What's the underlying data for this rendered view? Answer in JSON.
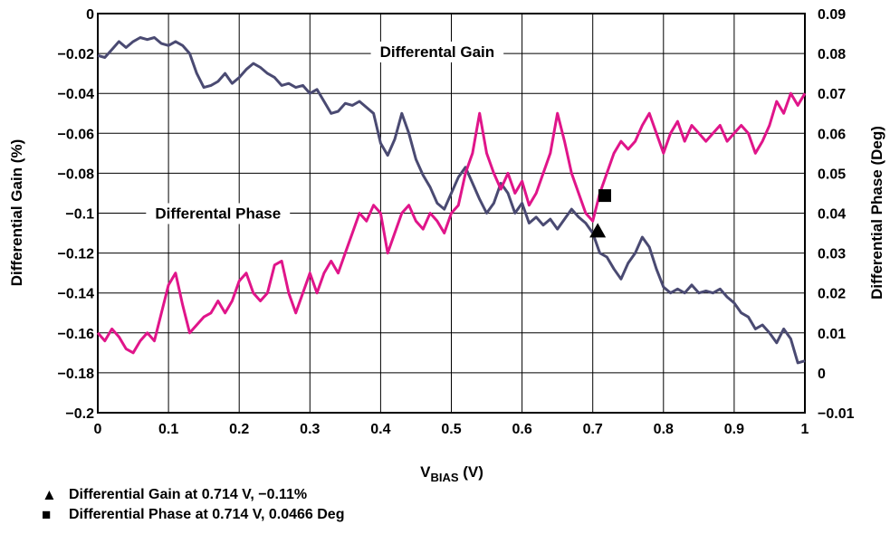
{
  "chart_data": {
    "type": "line",
    "x_label_main": "V",
    "x_label_sub": "BIAS",
    "x_label_unit": " (V)",
    "y_left_label": "Differential Gain (%)",
    "y_right_label": "Differential Phase (Deg)",
    "xlim": [
      0,
      1
    ],
    "ylim_left": [
      -0.2,
      0
    ],
    "ylim_right": [
      -0.01,
      0.09
    ],
    "x_ticks": [
      "0",
      "0.1",
      "0.2",
      "0.3",
      "0.4",
      "0.5",
      "0.6",
      "0.7",
      "0.8",
      "0.9",
      "1"
    ],
    "y_left_ticks": [
      "0",
      "−0.02",
      "−0.04",
      "−0.06",
      "−0.08",
      "−0.1",
      "−0.12",
      "−0.14",
      "−0.16",
      "−0.18",
      "−0.2"
    ],
    "y_right_ticks": [
      "0.09",
      "0.08",
      "0.07",
      "0.06",
      "0.05",
      "0.04",
      "0.03",
      "0.02",
      "0.01",
      "0",
      "−0.01"
    ],
    "grid": true,
    "series": [
      {
        "name": "Differental Gain",
        "axis": "left",
        "color": "#4a4a72",
        "x": [
          0.0,
          0.01,
          0.02,
          0.03,
          0.04,
          0.05,
          0.06,
          0.07,
          0.08,
          0.09,
          0.1,
          0.11,
          0.12,
          0.13,
          0.14,
          0.15,
          0.16,
          0.17,
          0.18,
          0.19,
          0.2,
          0.21,
          0.22,
          0.23,
          0.24,
          0.25,
          0.26,
          0.27,
          0.28,
          0.29,
          0.3,
          0.31,
          0.32,
          0.33,
          0.34,
          0.35,
          0.36,
          0.37,
          0.38,
          0.39,
          0.4,
          0.41,
          0.42,
          0.43,
          0.44,
          0.45,
          0.46,
          0.47,
          0.48,
          0.49,
          0.5,
          0.51,
          0.52,
          0.53,
          0.54,
          0.55,
          0.56,
          0.57,
          0.58,
          0.59,
          0.6,
          0.61,
          0.62,
          0.63,
          0.64,
          0.65,
          0.66,
          0.67,
          0.68,
          0.69,
          0.7,
          0.71,
          0.72,
          0.73,
          0.74,
          0.75,
          0.76,
          0.77,
          0.78,
          0.79,
          0.8,
          0.81,
          0.82,
          0.83,
          0.84,
          0.85,
          0.86,
          0.87,
          0.88,
          0.89,
          0.9,
          0.91,
          0.92,
          0.93,
          0.94,
          0.95,
          0.96,
          0.97,
          0.98,
          0.99,
          1.0
        ],
        "values": [
          -0.021,
          -0.022,
          -0.018,
          -0.014,
          -0.017,
          -0.014,
          -0.012,
          -0.013,
          -0.012,
          -0.015,
          -0.016,
          -0.014,
          -0.016,
          -0.02,
          -0.03,
          -0.037,
          -0.036,
          -0.034,
          -0.03,
          -0.035,
          -0.032,
          -0.028,
          -0.025,
          -0.027,
          -0.03,
          -0.032,
          -0.036,
          -0.035,
          -0.037,
          -0.036,
          -0.04,
          -0.038,
          -0.044,
          -0.05,
          -0.049,
          -0.045,
          -0.046,
          -0.044,
          -0.047,
          -0.05,
          -0.065,
          -0.071,
          -0.063,
          -0.05,
          -0.06,
          -0.073,
          -0.081,
          -0.087,
          -0.095,
          -0.098,
          -0.09,
          -0.082,
          -0.077,
          -0.085,
          -0.093,
          -0.1,
          -0.095,
          -0.085,
          -0.09,
          -0.1,
          -0.095,
          -0.105,
          -0.102,
          -0.106,
          -0.103,
          -0.108,
          -0.103,
          -0.098,
          -0.102,
          -0.105,
          -0.11,
          -0.12,
          -0.122,
          -0.128,
          -0.133,
          -0.125,
          -0.12,
          -0.112,
          -0.117,
          -0.128,
          -0.137,
          -0.14,
          -0.138,
          -0.14,
          -0.136,
          -0.14,
          -0.139,
          -0.14,
          -0.138,
          -0.142,
          -0.145,
          -0.15,
          -0.152,
          -0.158,
          -0.156,
          -0.16,
          -0.165,
          -0.158,
          -0.163,
          -0.175,
          -0.174
        ]
      },
      {
        "name": "Differental Phase",
        "axis": "right",
        "color": "#e0158a",
        "x": [
          0.0,
          0.01,
          0.02,
          0.03,
          0.04,
          0.05,
          0.06,
          0.07,
          0.08,
          0.09,
          0.1,
          0.11,
          0.12,
          0.13,
          0.14,
          0.15,
          0.16,
          0.17,
          0.18,
          0.19,
          0.2,
          0.21,
          0.22,
          0.23,
          0.24,
          0.25,
          0.26,
          0.27,
          0.28,
          0.29,
          0.3,
          0.31,
          0.32,
          0.33,
          0.34,
          0.35,
          0.36,
          0.37,
          0.38,
          0.39,
          0.4,
          0.41,
          0.42,
          0.43,
          0.44,
          0.45,
          0.46,
          0.47,
          0.48,
          0.49,
          0.5,
          0.51,
          0.52,
          0.53,
          0.54,
          0.55,
          0.56,
          0.57,
          0.58,
          0.59,
          0.6,
          0.61,
          0.62,
          0.63,
          0.64,
          0.65,
          0.66,
          0.67,
          0.68,
          0.69,
          0.7,
          0.71,
          0.72,
          0.73,
          0.74,
          0.75,
          0.76,
          0.77,
          0.78,
          0.79,
          0.8,
          0.81,
          0.82,
          0.83,
          0.84,
          0.85,
          0.86,
          0.87,
          0.88,
          0.89,
          0.9,
          0.91,
          0.92,
          0.93,
          0.94,
          0.95,
          0.96,
          0.97,
          0.98,
          0.99,
          1.0
        ],
        "values": [
          0.01,
          0.008,
          0.011,
          0.009,
          0.006,
          0.005,
          0.008,
          0.01,
          0.008,
          0.015,
          0.022,
          0.025,
          0.017,
          0.01,
          0.012,
          0.014,
          0.015,
          0.018,
          0.015,
          0.018,
          0.023,
          0.025,
          0.02,
          0.018,
          0.02,
          0.027,
          0.028,
          0.02,
          0.015,
          0.02,
          0.025,
          0.02,
          0.025,
          0.028,
          0.025,
          0.03,
          0.035,
          0.04,
          0.038,
          0.042,
          0.04,
          0.03,
          0.035,
          0.04,
          0.042,
          0.038,
          0.036,
          0.04,
          0.038,
          0.035,
          0.04,
          0.042,
          0.05,
          0.055,
          0.065,
          0.055,
          0.05,
          0.046,
          0.05,
          0.045,
          0.048,
          0.042,
          0.045,
          0.05,
          0.055,
          0.065,
          0.058,
          0.05,
          0.045,
          0.04,
          0.038,
          0.045,
          0.05,
          0.055,
          0.058,
          0.056,
          0.058,
          0.062,
          0.065,
          0.06,
          0.055,
          0.06,
          0.063,
          0.058,
          0.062,
          0.06,
          0.058,
          0.06,
          0.062,
          0.058,
          0.06,
          0.062,
          0.06,
          0.055,
          0.058,
          0.062,
          0.068,
          0.065,
          0.07,
          0.067,
          0.07
        ]
      }
    ],
    "annotations": [
      {
        "text": "Differental Gain",
        "x": 0.48,
        "y_left": -0.019
      },
      {
        "text": "Differental Phase",
        "x": 0.17,
        "y_left": -0.1
      }
    ],
    "markers": [
      {
        "shape": "triangle",
        "axis": "left",
        "x": 0.707,
        "y": -0.109
      },
      {
        "shape": "square",
        "axis": "right",
        "x": 0.717,
        "y": 0.0444
      }
    ]
  },
  "legend": [
    {
      "symbol": "▲",
      "text": "Differential Gain at 0.714 V, −0.11%"
    },
    {
      "symbol": "■",
      "text": "Differential Phase at 0.714 V, 0.0466 Deg"
    }
  ]
}
